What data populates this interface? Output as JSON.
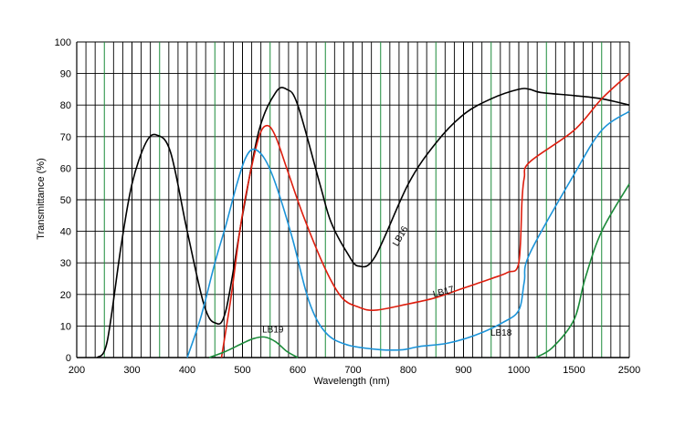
{
  "chart_data": {
    "type": "line",
    "xlabel": "Wavelength (nm)",
    "ylabel": "Transmittance (%)",
    "xticks": [
      "200",
      "300",
      "400",
      "500",
      "600",
      "700",
      "800",
      "900",
      "1000",
      "1500",
      "2500"
    ],
    "ylim": [
      0,
      100
    ],
    "yticks": [
      100,
      90,
      80,
      70,
      60,
      50,
      40,
      30,
      20,
      10,
      0
    ],
    "grid": true,
    "legend": "inline",
    "series": [
      {
        "name": "LB16",
        "color": "#000000",
        "points": [
          [
            237,
            0
          ],
          [
            255,
            5
          ],
          [
            280,
            35
          ],
          [
            300,
            55
          ],
          [
            325,
            68
          ],
          [
            345,
            70.5
          ],
          [
            370,
            65
          ],
          [
            400,
            40
          ],
          [
            430,
            17
          ],
          [
            450,
            11
          ],
          [
            470,
            15
          ],
          [
            500,
            45
          ],
          [
            530,
            72
          ],
          [
            560,
            84
          ],
          [
            580,
            85
          ],
          [
            600,
            80
          ],
          [
            640,
            55
          ],
          [
            660,
            43
          ],
          [
            690,
            33
          ],
          [
            710,
            29
          ],
          [
            740,
            32
          ],
          [
            800,
            55
          ],
          [
            850,
            68
          ],
          [
            900,
            77
          ],
          [
            950,
            82
          ],
          [
            1000,
            85
          ],
          [
            1100,
            85
          ],
          [
            1200,
            84
          ],
          [
            1500,
            83
          ],
          [
            2000,
            82
          ],
          [
            2500,
            80
          ]
        ]
      },
      {
        "name": "LB17",
        "color": "#dd1e0e",
        "points": [
          [
            462,
            0
          ],
          [
            480,
            20
          ],
          [
            495,
            40
          ],
          [
            510,
            55
          ],
          [
            530,
            70
          ],
          [
            545,
            73.5
          ],
          [
            560,
            70
          ],
          [
            580,
            60
          ],
          [
            610,
            45
          ],
          [
            650,
            28
          ],
          [
            680,
            19
          ],
          [
            710,
            16
          ],
          [
            740,
            15
          ],
          [
            800,
            17
          ],
          [
            850,
            19
          ],
          [
            900,
            22
          ],
          [
            950,
            25
          ],
          [
            980,
            27
          ],
          [
            1000,
            30
          ],
          [
            1030,
            50
          ],
          [
            1050,
            57
          ],
          [
            1100,
            62
          ],
          [
            1500,
            72
          ],
          [
            2000,
            82
          ],
          [
            2500,
            90
          ]
        ]
      },
      {
        "name": "LB18",
        "color": "#1b93d8",
        "points": [
          [
            400,
            0
          ],
          [
            425,
            13
          ],
          [
            450,
            30
          ],
          [
            470,
            42
          ],
          [
            490,
            55
          ],
          [
            505,
            63
          ],
          [
            520,
            66
          ],
          [
            540,
            63
          ],
          [
            560,
            55
          ],
          [
            590,
            38
          ],
          [
            620,
            18
          ],
          [
            650,
            8
          ],
          [
            690,
            4
          ],
          [
            750,
            2.5
          ],
          [
            790,
            2.5
          ],
          [
            820,
            3.5
          ],
          [
            870,
            4.5
          ],
          [
            920,
            7
          ],
          [
            970,
            11
          ],
          [
            1000,
            15
          ],
          [
            1050,
            24
          ],
          [
            1100,
            33
          ],
          [
            1500,
            58
          ],
          [
            2000,
            72
          ],
          [
            2500,
            78
          ]
        ]
      },
      {
        "name": "LB19",
        "color": "#1c8b3a",
        "points": [
          [
            440,
            0
          ],
          [
            470,
            2
          ],
          [
            500,
            4.5
          ],
          [
            520,
            6
          ],
          [
            540,
            6.5
          ],
          [
            560,
            5
          ],
          [
            580,
            2
          ],
          [
            600,
            0
          ]
        ],
        "tail": [
          [
            1150,
            0
          ],
          [
            1300,
            3
          ],
          [
            1500,
            12
          ],
          [
            1700,
            25
          ],
          [
            2000,
            40
          ],
          [
            2500,
            55
          ]
        ]
      }
    ],
    "labels": [
      {
        "text": "LB16",
        "x": 790,
        "y": 38,
        "angle": -60
      },
      {
        "text": "LB17",
        "x": 865,
        "y": 20,
        "angle": -15
      },
      {
        "text": "LB18",
        "x": 968,
        "y": 7,
        "angle": 0
      },
      {
        "text": "LB19",
        "x": 555,
        "y": 8,
        "angle": 0
      }
    ]
  }
}
